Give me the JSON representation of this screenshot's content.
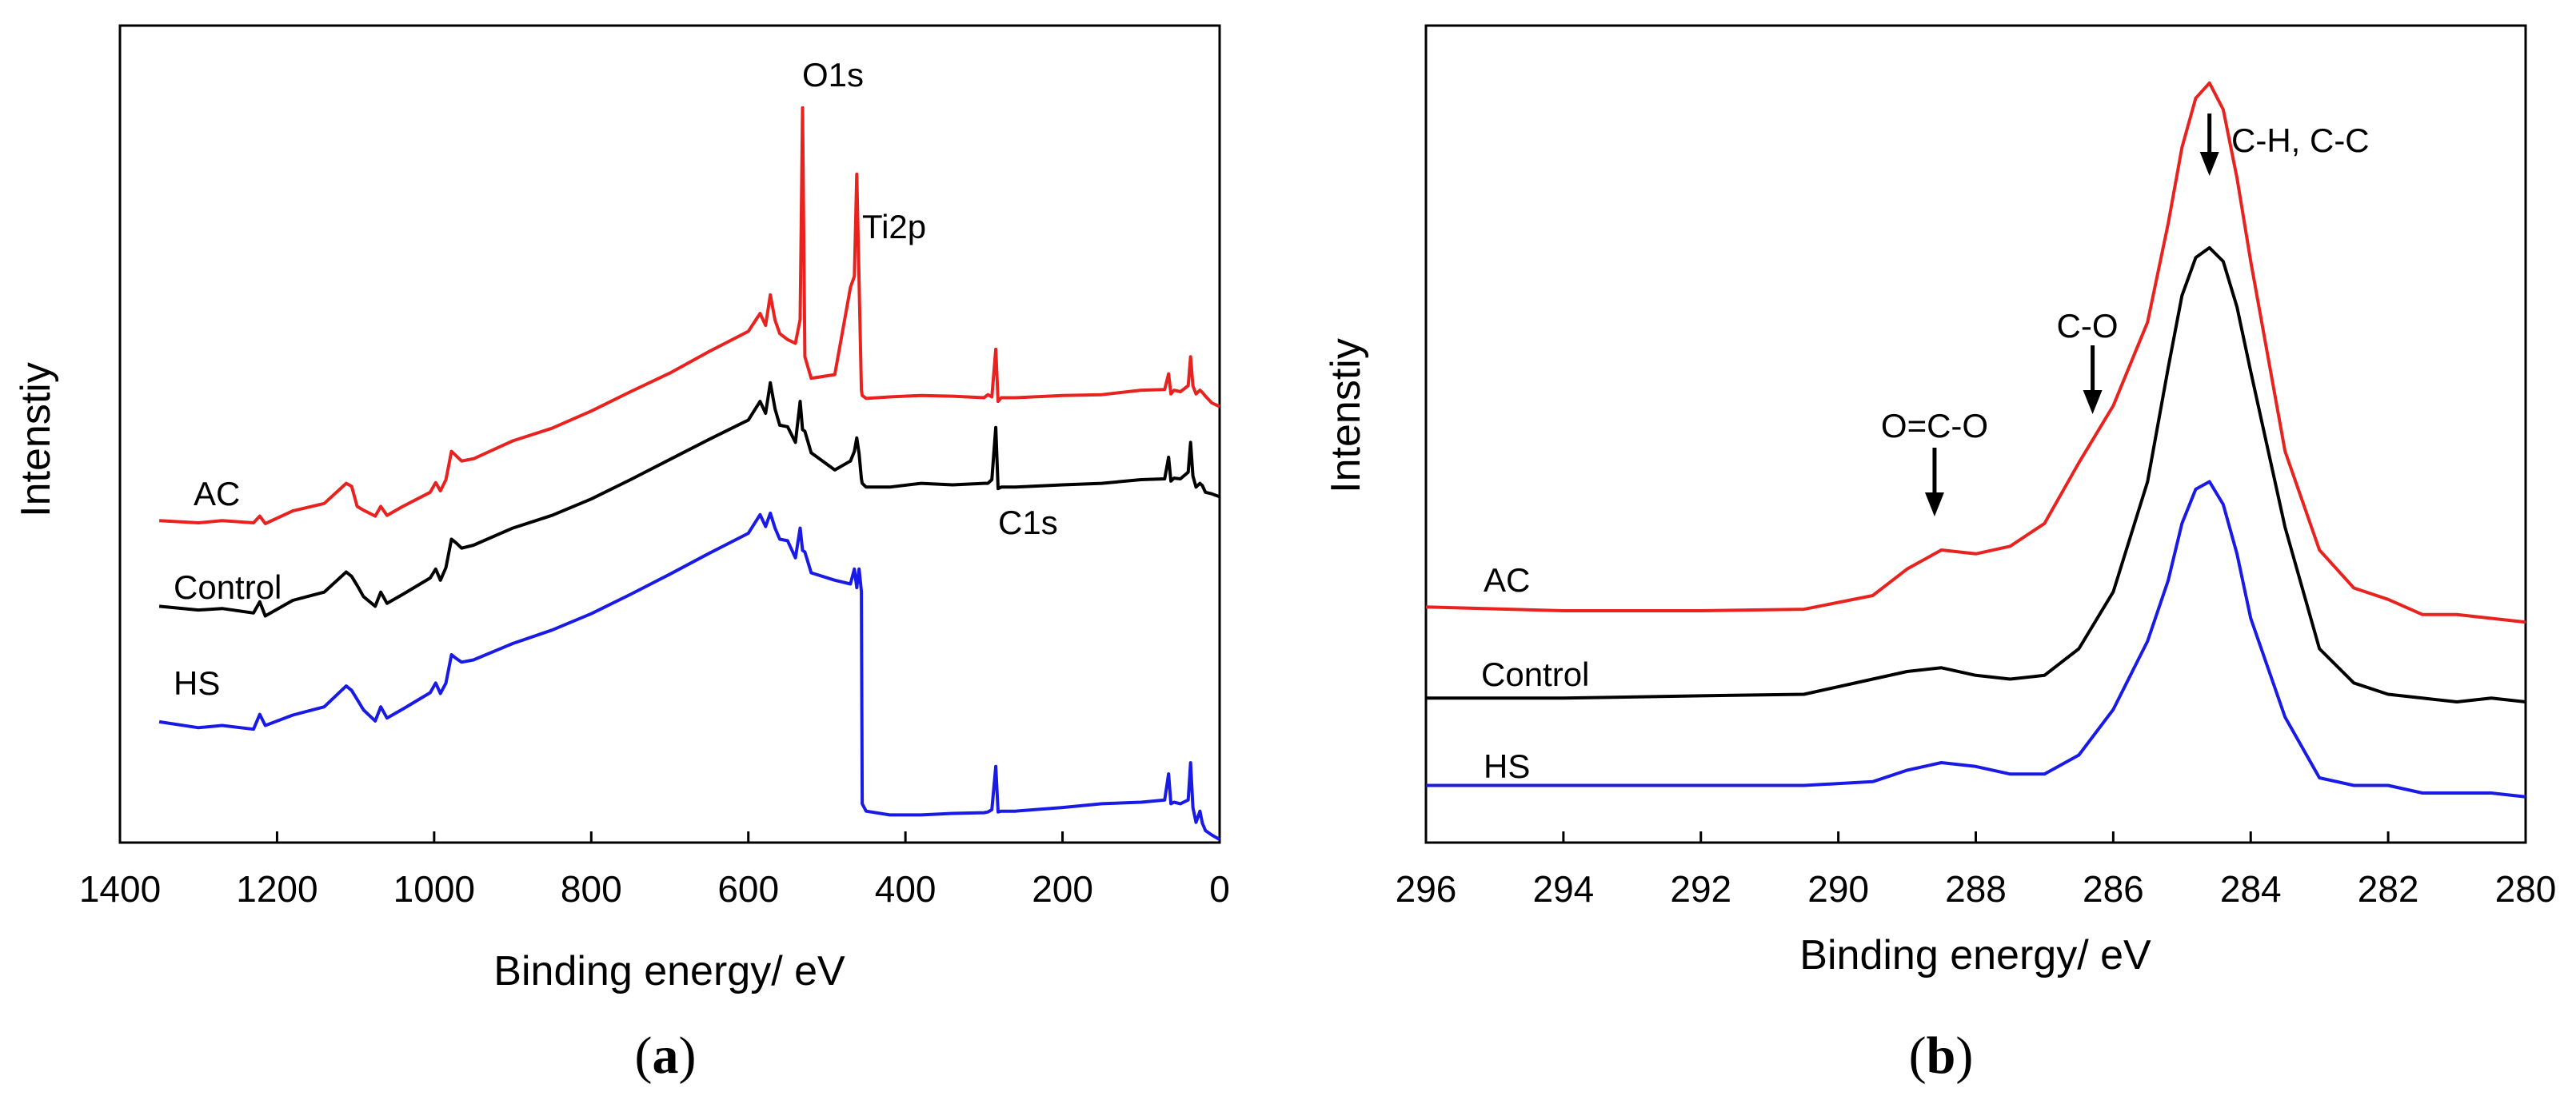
{
  "chart_data": [
    {
      "panel": "a",
      "type": "line",
      "title": "",
      "xlabel": "Binding energy/ eV",
      "ylabel": "Intenstiy",
      "xlim": [
        1400,
        0
      ],
      "x_reversed": true,
      "xticks": [
        1400,
        1200,
        1000,
        800,
        600,
        400,
        200,
        0
      ],
      "ylim": [
        0,
        100
      ],
      "y_ticks_shown": false,
      "grid": false,
      "series": [
        {
          "name": "AC",
          "color": "#e8231f",
          "x": [
            1350,
            1300,
            1270,
            1230,
            1222,
            1215,
            1180,
            1140,
            1112,
            1105,
            1098,
            1090,
            1075,
            1068,
            1060,
            1040,
            1005,
            998,
            992,
            985,
            978,
            972,
            965,
            950,
            900,
            850,
            800,
            750,
            700,
            650,
            600,
            585,
            578,
            572,
            566,
            560,
            550,
            540,
            534,
            531,
            528,
            520,
            490,
            470,
            465,
            462,
            459,
            456,
            455,
            450,
            420,
            380,
            340,
            300,
            295,
            290,
            285,
            282,
            278,
            260,
            200,
            150,
            100,
            70,
            65,
            62,
            58,
            50,
            40,
            37,
            34,
            30,
            25,
            22,
            18,
            10,
            0
          ],
          "values": [
            43.0,
            42.7,
            43.0,
            42.7,
            43.6,
            42.6,
            44.3,
            45.3,
            48.0,
            47.6,
            44.9,
            44.4,
            43.6,
            44.9,
            43.7,
            44.9,
            46.8,
            48.1,
            47.0,
            48.5,
            52.3,
            51.7,
            51.0,
            51.3,
            53.7,
            55.4,
            57.7,
            60.3,
            62.8,
            65.7,
            68.4,
            70.8,
            69.2,
            73.3,
            69.9,
            68.1,
            67.3,
            66.8,
            70.0,
            98.4,
            65.0,
            62.1,
            62.6,
            74.3,
            75.8,
            89.5,
            75.0,
            60.5,
            59.8,
            59.4,
            59.6,
            59.8,
            59.7,
            59.5,
            59.9,
            59.6,
            66.0,
            59.0,
            59.5,
            59.5,
            59.8,
            59.9,
            60.5,
            60.6,
            62.7,
            60.0,
            60.5,
            60.3,
            61.1,
            65.0,
            61.1,
            60.0,
            60.5,
            60.2,
            59.7,
            58.8,
            58.3
          ]
        },
        {
          "name": "Control",
          "color": "#000000",
          "x": [
            1350,
            1300,
            1270,
            1230,
            1222,
            1215,
            1180,
            1140,
            1112,
            1105,
            1098,
            1090,
            1075,
            1068,
            1060,
            1040,
            1005,
            998,
            992,
            985,
            978,
            972,
            965,
            950,
            900,
            850,
            800,
            750,
            700,
            650,
            600,
            585,
            578,
            572,
            566,
            560,
            550,
            540,
            534,
            531,
            528,
            520,
            490,
            470,
            465,
            462,
            459,
            456,
            455,
            450,
            420,
            380,
            340,
            300,
            295,
            290,
            285,
            282,
            278,
            260,
            200,
            150,
            100,
            70,
            65,
            62,
            58,
            50,
            40,
            37,
            34,
            30,
            25,
            22,
            18,
            10,
            0
          ],
          "values": [
            31.5,
            31.0,
            31.2,
            30.6,
            32.1,
            30.2,
            32.3,
            33.4,
            36.1,
            35.5,
            34.3,
            32.8,
            31.5,
            33.4,
            31.9,
            33.1,
            35.3,
            36.5,
            35.0,
            36.7,
            40.5,
            40.0,
            39.3,
            39.7,
            42.0,
            43.7,
            45.9,
            48.5,
            51.2,
            53.9,
            56.5,
            59.0,
            57.4,
            61.5,
            58.0,
            55.8,
            55.6,
            53.5,
            59.0,
            55.2,
            55.0,
            52.1,
            49.8,
            51.0,
            52.3,
            54.1,
            52.0,
            48.6,
            48.0,
            47.5,
            47.5,
            48.0,
            47.8,
            48.0,
            48.0,
            48.5,
            55.5,
            47.3,
            47.5,
            47.5,
            47.8,
            48.0,
            48.5,
            48.6,
            51.5,
            48.3,
            48.7,
            48.6,
            49.5,
            53.5,
            49.0,
            47.5,
            48.0,
            47.7,
            46.8,
            46.6,
            46.2
          ]
        },
        {
          "name": "HS",
          "color": "#1a1ae6",
          "x": [
            1350,
            1300,
            1270,
            1230,
            1222,
            1215,
            1180,
            1140,
            1112,
            1105,
            1098,
            1090,
            1075,
            1068,
            1060,
            1040,
            1005,
            998,
            992,
            985,
            978,
            972,
            965,
            950,
            900,
            850,
            800,
            750,
            700,
            650,
            600,
            585,
            578,
            572,
            566,
            560,
            550,
            540,
            534,
            531,
            528,
            520,
            490,
            470,
            465,
            462,
            459,
            456,
            455,
            450,
            420,
            380,
            340,
            300,
            295,
            290,
            285,
            282,
            278,
            260,
            200,
            150,
            100,
            70,
            65,
            62,
            58,
            50,
            40,
            37,
            34,
            30,
            25,
            22,
            18,
            10,
            0
          ],
          "values": [
            16.0,
            15.2,
            15.5,
            15.0,
            17.0,
            15.5,
            16.9,
            18.0,
            20.8,
            20.2,
            19.0,
            17.6,
            16.1,
            18.0,
            16.5,
            17.7,
            19.9,
            21.2,
            19.8,
            21.2,
            25.0,
            24.5,
            24.0,
            24.3,
            26.5,
            28.3,
            30.5,
            33.1,
            35.8,
            38.6,
            41.3,
            43.8,
            42.2,
            44.0,
            42.0,
            40.5,
            40.3,
            38.0,
            42.0,
            39.0,
            38.8,
            36.0,
            35.0,
            34.5,
            36.5,
            34.0,
            36.5,
            33.5,
            5.0,
            4.0,
            3.5,
            3.5,
            3.7,
            3.8,
            3.9,
            4.2,
            10.0,
            3.9,
            4.0,
            4.0,
            4.5,
            5.0,
            5.2,
            5.5,
            9.0,
            5.0,
            5.2,
            5.0,
            5.5,
            10.5,
            4.5,
            2.5,
            4.0,
            2.4,
            1.4,
            0.8,
            0.2
          ]
        }
      ],
      "series_labels": [
        "AC",
        "Control",
        "HS"
      ],
      "annotations": [
        {
          "text": "O1s",
          "x": 531
        },
        {
          "text": "Ti2p",
          "x": 459
        },
        {
          "text": "C1s",
          "x": 285
        }
      ]
    },
    {
      "panel": "b",
      "type": "line",
      "title": "",
      "xlabel": "Binding energy/ eV",
      "ylabel": "Intenstiy",
      "xlim": [
        296,
        280
      ],
      "x_reversed": true,
      "xticks": [
        296,
        294,
        292,
        290,
        288,
        286,
        284,
        282,
        280
      ],
      "ylim": [
        0,
        100
      ],
      "y_ticks_shown": false,
      "grid": false,
      "series": [
        {
          "name": "AC",
          "color": "#e8231f",
          "x": [
            296.0,
            294.0,
            292.0,
            290.5,
            289.5,
            289.0,
            288.5,
            288.0,
            287.5,
            287.0,
            286.5,
            286.0,
            285.5,
            285.2,
            285.0,
            284.8,
            284.6,
            284.4,
            284.2,
            284.0,
            283.5,
            283.0,
            282.5,
            282.0,
            281.5,
            281.0,
            280.5,
            280.0
          ],
          "values": [
            28.5,
            28.0,
            28.0,
            28.2,
            30.0,
            33.5,
            36.0,
            35.5,
            36.5,
            39.5,
            47.5,
            55.0,
            66.0,
            79.0,
            89.0,
            95.5,
            97.5,
            94.0,
            85.0,
            74.0,
            49.0,
            36.0,
            31.0,
            29.5,
            27.5,
            27.5,
            27.0,
            26.5
          ]
        },
        {
          "name": "Control",
          "color": "#000000",
          "x": [
            296.0,
            294.0,
            292.0,
            290.5,
            289.5,
            289.0,
            288.5,
            288.0,
            287.5,
            287.0,
            286.5,
            286.0,
            285.5,
            285.2,
            285.0,
            284.8,
            284.6,
            284.4,
            284.2,
            284.0,
            283.5,
            283.0,
            282.5,
            282.0,
            281.5,
            281.0,
            280.5,
            280.0
          ],
          "values": [
            16.5,
            16.5,
            16.8,
            17.0,
            19.0,
            20.0,
            20.5,
            19.5,
            19.0,
            19.5,
            23.0,
            30.5,
            45.0,
            60.0,
            69.5,
            74.5,
            75.8,
            74.0,
            68.0,
            59.5,
            39.0,
            23.0,
            18.5,
            17.0,
            16.5,
            16.0,
            16.5,
            16.0
          ]
        },
        {
          "name": "HS",
          "color": "#1a1ae6",
          "x": [
            296.0,
            294.0,
            292.0,
            290.5,
            289.5,
            289.0,
            288.5,
            288.0,
            287.5,
            287.0,
            286.5,
            286.0,
            285.5,
            285.2,
            285.0,
            284.8,
            284.6,
            284.4,
            284.2,
            284.0,
            283.5,
            283.0,
            282.5,
            282.0,
            281.5,
            281.0,
            280.5,
            280.0
          ],
          "values": [
            5.0,
            5.0,
            5.0,
            5.0,
            5.5,
            7.0,
            8.0,
            7.5,
            6.5,
            6.5,
            9.0,
            15.0,
            24.0,
            32.0,
            39.5,
            44.0,
            45.0,
            42.0,
            35.5,
            27.0,
            14.0,
            6.0,
            5.0,
            5.0,
            4.0,
            4.0,
            4.0,
            3.5
          ]
        }
      ],
      "series_labels": [
        "AC",
        "Control",
        "HS"
      ],
      "annotations": [
        {
          "text": "O=C-O",
          "x": 288.6,
          "arrow": true
        },
        {
          "text": "C-O",
          "x": 286.3,
          "arrow": true
        },
        {
          "text": "C-H, C-C",
          "x": 284.6,
          "arrow": true
        }
      ]
    }
  ],
  "panel_labels": {
    "a": {
      "open": "(",
      "letter": "a",
      "close": ")"
    },
    "b": {
      "open": "(",
      "letter": "b",
      "close": ")"
    }
  }
}
